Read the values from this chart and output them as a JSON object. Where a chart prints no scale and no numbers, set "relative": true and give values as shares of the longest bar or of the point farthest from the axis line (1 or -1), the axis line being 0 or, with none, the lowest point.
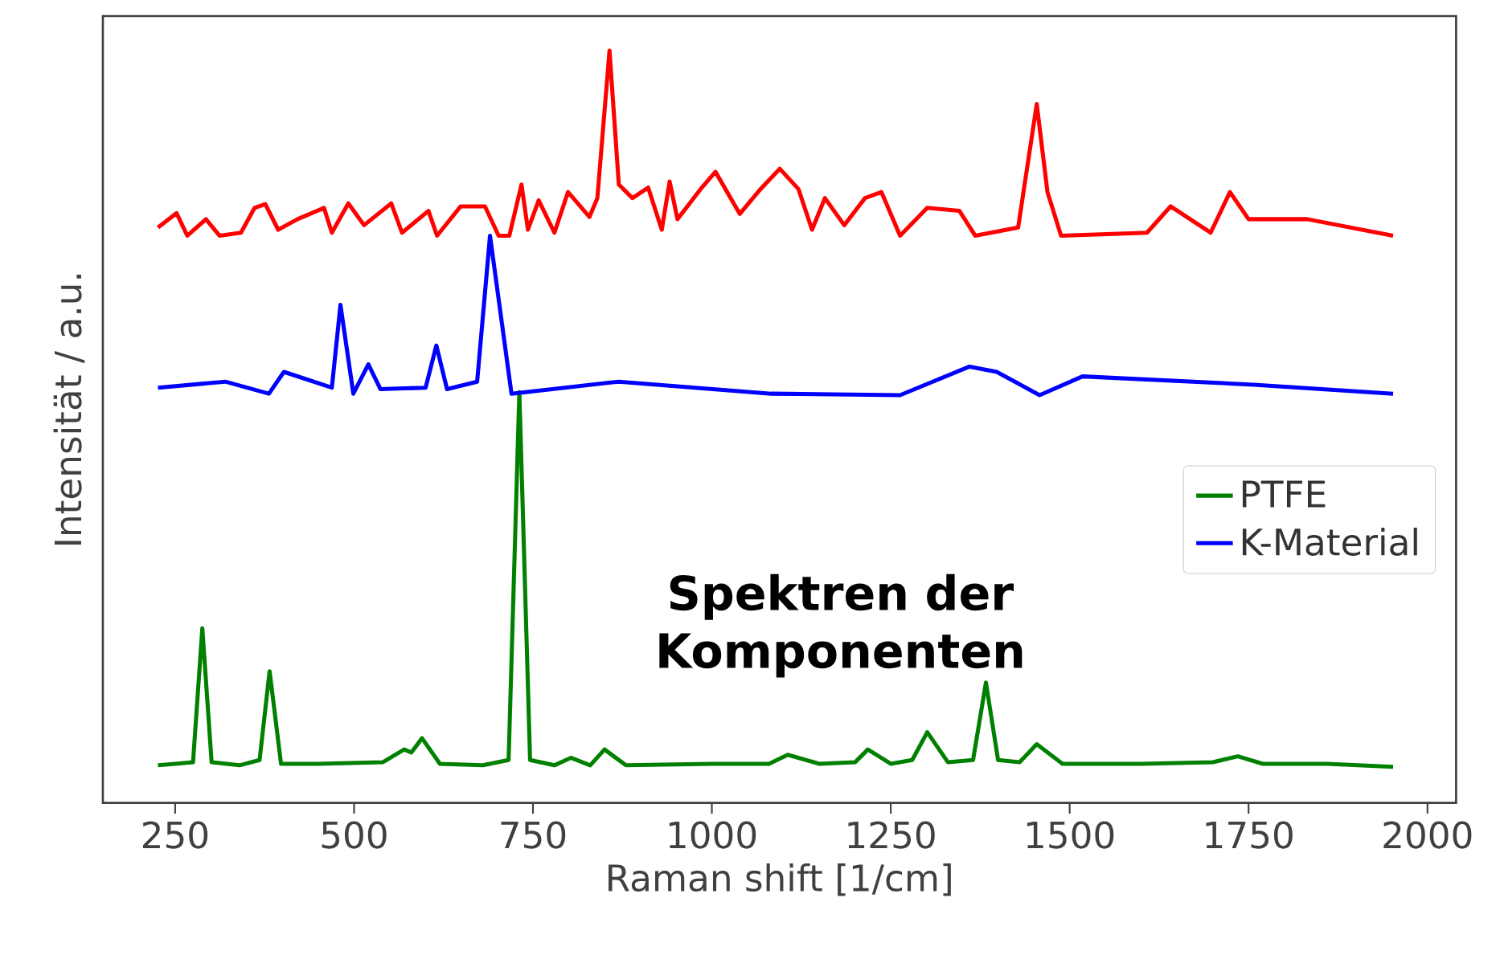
{
  "chart_data": {
    "type": "line",
    "relative": true,
    "xlabel": "Raman shift [1/cm]",
    "ylabel": "Intensität / a.u.",
    "annotations": [
      "Spektren der Komponenten"
    ],
    "xlim": [
      149,
      2040
    ],
    "xticks": [
      250,
      500,
      750,
      1000,
      1250,
      1500,
      1750,
      2000
    ],
    "legend": "right",
    "series": [
      {
        "name": "PTFE",
        "color": "#008000",
        "x": [
          226,
          250,
          275,
          288,
          301,
          340,
          368,
          382,
          398,
          450,
          540,
          570,
          580,
          595,
          620,
          680,
          716,
          731,
          746,
          780,
          803,
          830,
          850,
          880,
          1000,
          1080,
          1106,
          1150,
          1200,
          1218,
          1250,
          1280,
          1301,
          1330,
          1365,
          1383,
          1400,
          1430,
          1454,
          1490,
          1600,
          1700,
          1735,
          1770,
          1860,
          1952
        ],
        "values": [
          0.05,
          0.052,
          0.054,
          0.232,
          0.054,
          0.05,
          0.057,
          0.175,
          0.052,
          0.052,
          0.054,
          0.071,
          0.067,
          0.086,
          0.052,
          0.05,
          0.057,
          0.546,
          0.057,
          0.05,
          0.06,
          0.05,
          0.071,
          0.05,
          0.052,
          0.052,
          0.064,
          0.052,
          0.054,
          0.071,
          0.052,
          0.057,
          0.094,
          0.054,
          0.057,
          0.16,
          0.057,
          0.054,
          0.078,
          0.052,
          0.052,
          0.054,
          0.062,
          0.052,
          0.052,
          0.048
        ]
      },
      {
        "name": "K-Material",
        "color": "#0000ff",
        "x": [
          226,
          320,
          381,
          402,
          469,
          481,
          499,
          520,
          537,
          600,
          615,
          630,
          672,
          690,
          720,
          870,
          1083,
          1263,
          1360,
          1398,
          1458,
          1518,
          1757,
          1952
        ],
        "values": [
          0.552,
          0.56,
          0.544,
          0.573,
          0.552,
          0.662,
          0.544,
          0.583,
          0.55,
          0.552,
          0.608,
          0.55,
          0.56,
          0.754,
          0.544,
          0.56,
          0.544,
          0.542,
          0.58,
          0.573,
          0.542,
          0.567,
          0.556,
          0.544
        ]
      },
      {
        "color": "#ff0000",
        "x": [
          226,
          252,
          267,
          293,
          312,
          342,
          361,
          376,
          394,
          421,
          458,
          469,
          492,
          514,
          552,
          567,
          604,
          616,
          649,
          683,
          702,
          717,
          734,
          743,
          758,
          780,
          799,
          829,
          840,
          857,
          870,
          889,
          911,
          930,
          941,
          952,
          986,
          1005,
          1039,
          1068,
          1095,
          1121,
          1140,
          1158,
          1185,
          1214,
          1237,
          1263,
          1301,
          1346,
          1368,
          1428,
          1454,
          1469,
          1488,
          1608,
          1641,
          1697,
          1724,
          1750,
          1832,
          1952
        ],
        "values": [
          0.765,
          0.784,
          0.754,
          0.776,
          0.754,
          0.758,
          0.791,
          0.796,
          0.762,
          0.776,
          0.791,
          0.758,
          0.797,
          0.768,
          0.797,
          0.758,
          0.787,
          0.754,
          0.793,
          0.793,
          0.754,
          0.754,
          0.822,
          0.762,
          0.801,
          0.758,
          0.812,
          0.779,
          0.804,
          1,
          0.822,
          0.804,
          0.818,
          0.762,
          0.826,
          0.776,
          0.818,
          0.839,
          0.783,
          0.816,
          0.843,
          0.816,
          0.762,
          0.804,
          0.768,
          0.804,
          0.812,
          0.754,
          0.791,
          0.787,
          0.754,
          0.765,
          0.929,
          0.812,
          0.754,
          0.758,
          0.793,
          0.758,
          0.812,
          0.776,
          0.776,
          0.754
        ]
      }
    ]
  }
}
